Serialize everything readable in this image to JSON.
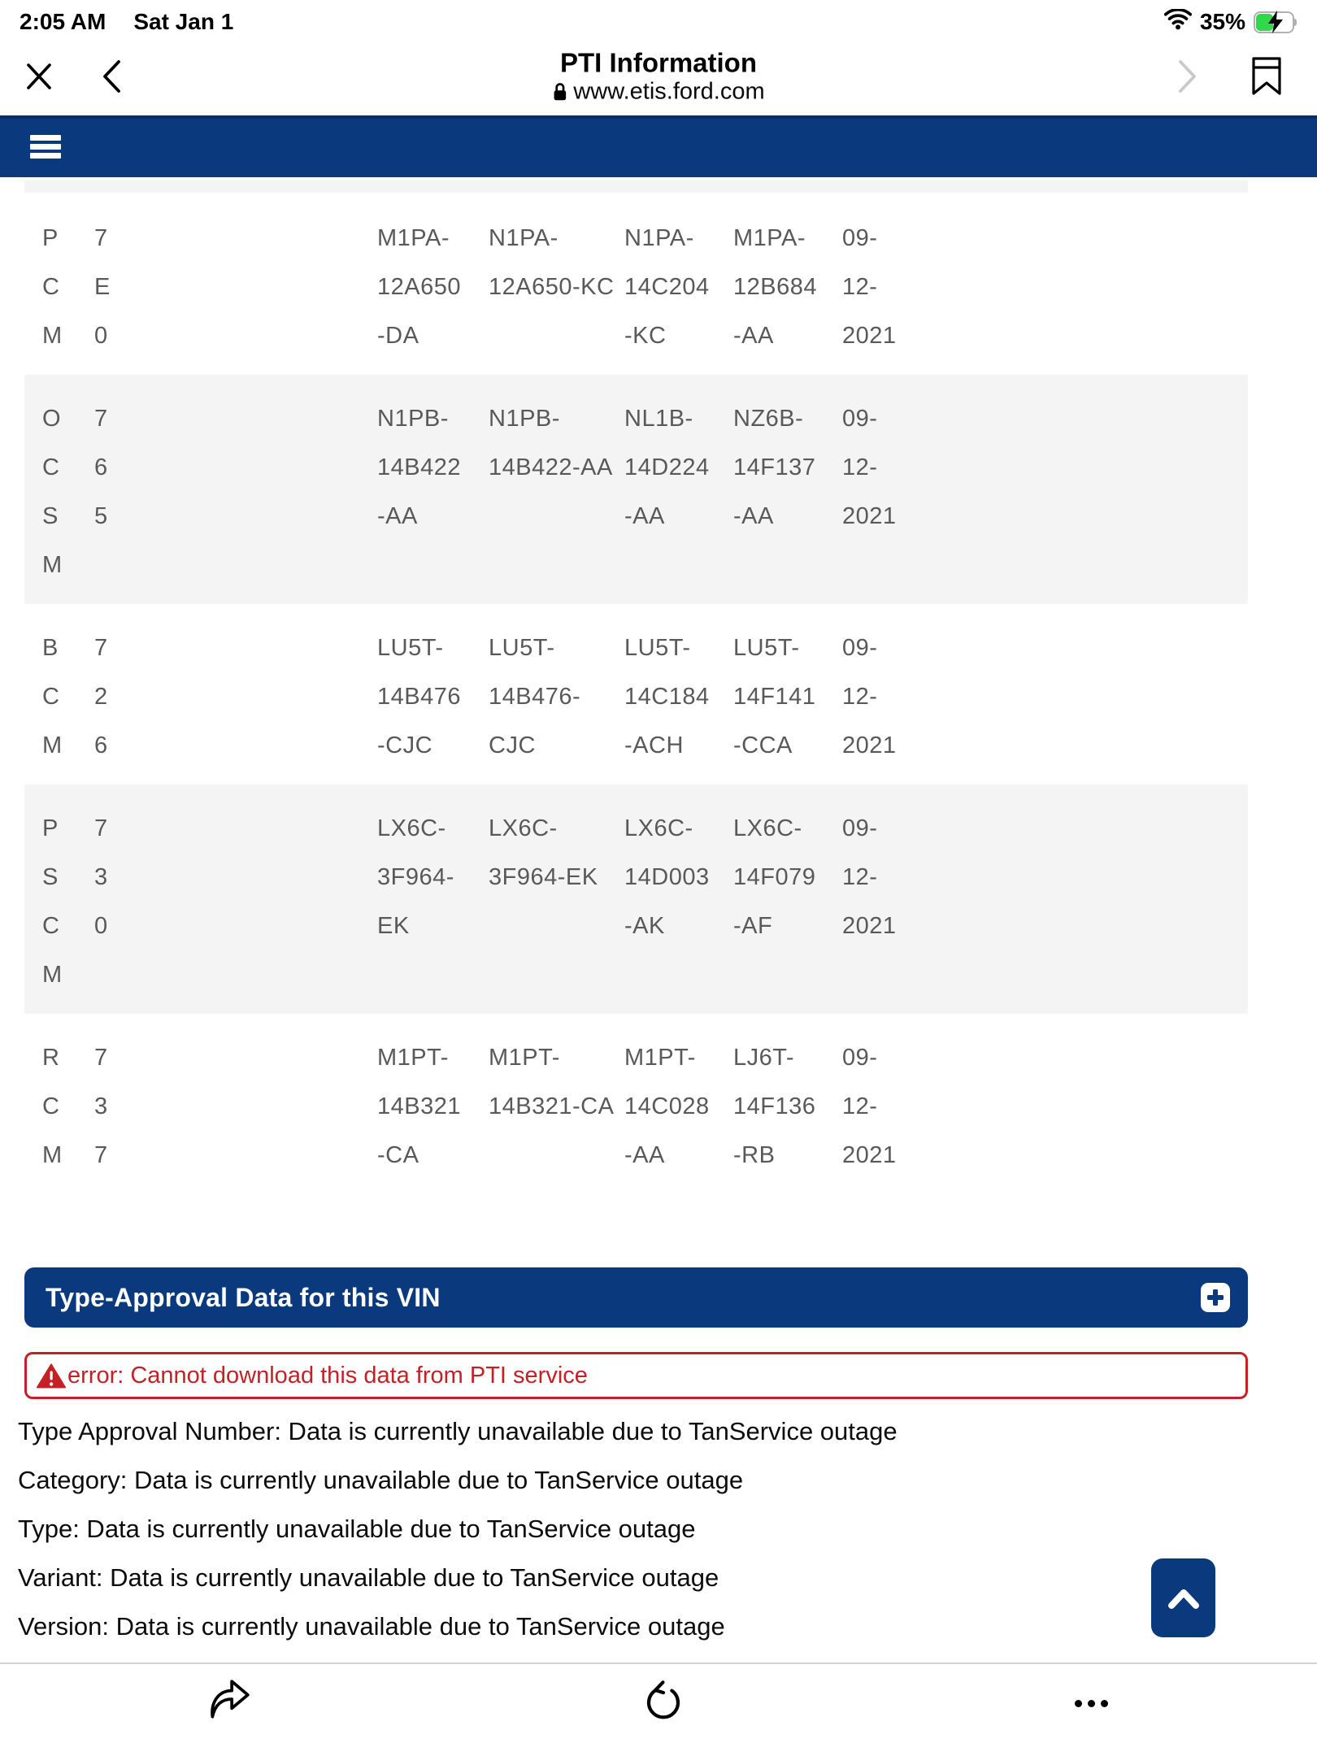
{
  "status_bar": {
    "time": "2:05 AM",
    "date": "Sat Jan 1",
    "battery_percent": "35%"
  },
  "browser": {
    "title": "PTI Information",
    "url": "www.etis.ford.com"
  },
  "colors": {
    "primary_blue": "#0a3a7d",
    "error_red": "#c42127",
    "row_gray": "#f4f4f4",
    "table_text": "#595959",
    "battery_green": "#32d74b"
  },
  "icons": {
    "close": "x-cross",
    "back": "chevron-left",
    "forward": "chevron-right",
    "bookmark": "bookmark-ribbon",
    "menu": "hamburger",
    "lock": "padlock",
    "expand": "plus",
    "warning": "triangle-exclamation",
    "scroll_top": "chevron-up",
    "share": "forward-arrow",
    "reload": "circular-arrow",
    "more": "ellipsis"
  },
  "table": {
    "rows": [
      {
        "shaded": false,
        "module": [
          "P",
          "C",
          "M"
        ],
        "code": [
          "7",
          "E",
          "0"
        ],
        "cols": [
          [
            "M1PA-",
            "12A650",
            "-DA"
          ],
          [
            "N1PA-",
            "12A650-KC"
          ],
          [
            "N1PA-",
            "14C204",
            "-KC"
          ],
          [
            "M1PA-",
            "12B684",
            "-AA"
          ],
          [
            "09-",
            "12-",
            "2021"
          ]
        ]
      },
      {
        "shaded": true,
        "module": [
          "O",
          "C",
          "S",
          "M"
        ],
        "code": [
          "7",
          "6",
          "5"
        ],
        "cols": [
          [
            "N1PB-",
            "14B422",
            "-AA"
          ],
          [
            "N1PB-",
            "14B422-AA"
          ],
          [
            "NL1B-",
            "14D224",
            "-AA"
          ],
          [
            "NZ6B-",
            "14F137",
            "-AA"
          ],
          [
            "09-",
            "12-",
            "2021"
          ]
        ]
      },
      {
        "shaded": false,
        "module": [
          "B",
          "C",
          "M"
        ],
        "code": [
          "7",
          "2",
          "6"
        ],
        "cols": [
          [
            "LU5T-",
            "14B476",
            "-CJC"
          ],
          [
            "LU5T-",
            "14B476-",
            "CJC"
          ],
          [
            "LU5T-",
            "14C184",
            "-ACH"
          ],
          [
            "LU5T-",
            "14F141",
            "-CCA"
          ],
          [
            "09-",
            "12-",
            "2021"
          ]
        ]
      },
      {
        "shaded": true,
        "module": [
          "P",
          "S",
          "C",
          "M"
        ],
        "code": [
          "7",
          "3",
          "0"
        ],
        "cols": [
          [
            "LX6C-",
            "3F964-",
            "EK"
          ],
          [
            "LX6C-",
            "3F964-EK"
          ],
          [
            "LX6C-",
            "14D003",
            "-AK"
          ],
          [
            "LX6C-",
            "14F079",
            "-AF"
          ],
          [
            "09-",
            "12-",
            "2021"
          ]
        ]
      },
      {
        "shaded": false,
        "module": [
          "R",
          "C",
          "M"
        ],
        "code": [
          "7",
          "3",
          "7"
        ],
        "cols": [
          [
            "M1PT-",
            "14B321",
            "-CA"
          ],
          [
            "M1PT-",
            "14B321-CA"
          ],
          [
            "M1PT-",
            "14C028",
            "-AA"
          ],
          [
            "LJ6T-",
            "14F136",
            "-RB"
          ],
          [
            "09-",
            "12-",
            "2021"
          ]
        ]
      }
    ]
  },
  "type_approval": {
    "header": "Type-Approval Data for this VIN",
    "error": "error: Cannot download this data from PTI service",
    "lines": [
      "Type Approval Number: Data is currently unavailable due to TanService outage",
      "Category: Data is currently unavailable due to TanService outage",
      "Type: Data is currently unavailable due to TanService outage",
      "Variant: Data is currently unavailable due to TanService outage",
      "Version: Data is currently unavailable due to TanService outage"
    ]
  }
}
